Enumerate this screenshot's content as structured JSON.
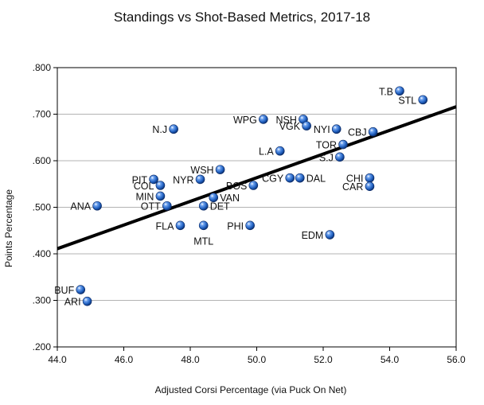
{
  "chart_data": {
    "type": "scatter",
    "title": "Standings vs Shot-Based Metrics, 2017-18",
    "xlabel": "Adjusted Corsi Percentage (via Puck On Net)",
    "ylabel": "Points Percentage",
    "xlim": [
      44.0,
      56.0
    ],
    "ylim": [
      0.2,
      0.8
    ],
    "xticks": [
      "44.0",
      "46.0",
      "48.0",
      "50.0",
      "52.0",
      "54.0",
      "56.0"
    ],
    "yticks": [
      ".200",
      ".300",
      ".400",
      ".500",
      ".600",
      ".700",
      ".800"
    ],
    "grid": "horizontal",
    "legend": "none",
    "point_color": "#1f5fbf",
    "trendline": {
      "x": [
        44.0,
        56.0
      ],
      "y": [
        0.411,
        0.716
      ],
      "color": "#000000"
    },
    "points": [
      {
        "label": "T.B",
        "x": 54.3,
        "y": 0.75
      },
      {
        "label": "STL",
        "x": 55.0,
        "y": 0.731
      },
      {
        "label": "N.J",
        "x": 47.5,
        "y": 0.668
      },
      {
        "label": "WPG",
        "x": 50.2,
        "y": 0.689
      },
      {
        "label": "NSH",
        "x": 51.4,
        "y": 0.689
      },
      {
        "label": "VGK",
        "x": 51.5,
        "y": 0.675
      },
      {
        "label": "NYI",
        "x": 52.4,
        "y": 0.668
      },
      {
        "label": "CBJ",
        "x": 53.5,
        "y": 0.662
      },
      {
        "label": "TOR",
        "x": 52.6,
        "y": 0.635
      },
      {
        "label": "L.A",
        "x": 50.7,
        "y": 0.621
      },
      {
        "label": "S.J",
        "x": 52.5,
        "y": 0.608
      },
      {
        "label": "WSH",
        "x": 48.9,
        "y": 0.581
      },
      {
        "label": "PIT",
        "x": 46.9,
        "y": 0.56
      },
      {
        "label": "NYR",
        "x": 48.3,
        "y": 0.56
      },
      {
        "label": "CGY",
        "x": 51.0,
        "y": 0.563
      },
      {
        "label": "DAL",
        "x": 51.3,
        "y": 0.563
      },
      {
        "label": "CHI",
        "x": 53.4,
        "y": 0.563
      },
      {
        "label": "COL",
        "x": 47.1,
        "y": 0.547
      },
      {
        "label": "BOS",
        "x": 49.9,
        "y": 0.547
      },
      {
        "label": "CAR",
        "x": 53.4,
        "y": 0.545
      },
      {
        "label": "MIN",
        "x": 47.1,
        "y": 0.524
      },
      {
        "label": "VAN",
        "x": 48.7,
        "y": 0.521
      },
      {
        "label": "ANA",
        "x": 45.2,
        "y": 0.503
      },
      {
        "label": "OTT",
        "x": 47.3,
        "y": 0.503
      },
      {
        "label": "DET",
        "x": 48.4,
        "y": 0.503
      },
      {
        "label": "FLA",
        "x": 47.7,
        "y": 0.461
      },
      {
        "label": "MTL",
        "x": 48.4,
        "y": 0.461
      },
      {
        "label": "PHI",
        "x": 49.8,
        "y": 0.461
      },
      {
        "label": "EDM",
        "x": 52.2,
        "y": 0.441
      },
      {
        "label": "BUF",
        "x": 44.7,
        "y": 0.323
      },
      {
        "label": "ARI",
        "x": 44.9,
        "y": 0.298
      }
    ]
  }
}
